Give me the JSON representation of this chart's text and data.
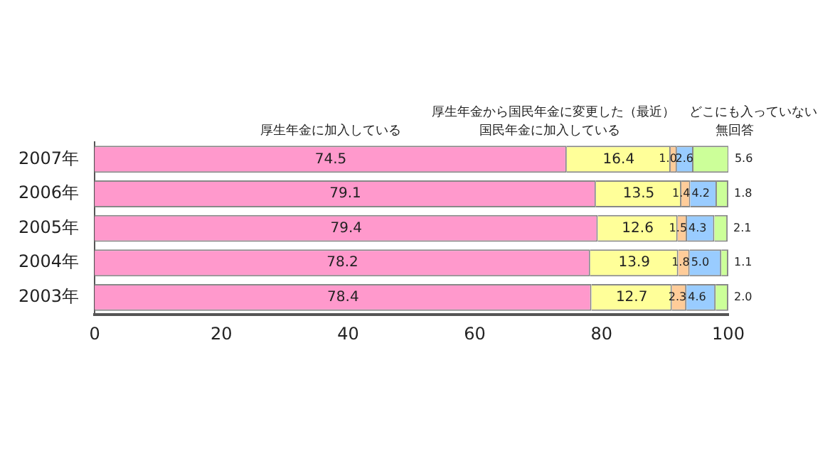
{
  "chart_data": {
    "type": "bar",
    "orientation": "horizontal",
    "stacked": true,
    "categories": [
      "2007年",
      "2006年",
      "2005年",
      "2004年",
      "2003年"
    ],
    "series": [
      {
        "name": "厚生年金に加入している",
        "color": "#ff99cc",
        "values": [
          74.5,
          79.1,
          79.4,
          78.2,
          78.4
        ],
        "value_labels": [
          "74.5",
          "79.1",
          "79.4",
          "78.2",
          "78.4"
        ]
      },
      {
        "name": "国民年金に加入している",
        "color": "#ffff99",
        "values": [
          16.4,
          13.5,
          12.6,
          13.9,
          12.7
        ],
        "value_labels": [
          "16.4",
          "13.5",
          "12.6",
          "13.9",
          "12.7"
        ]
      },
      {
        "name": "厚生年金から国民年金に変更した（最近）",
        "color": "#ffcc99",
        "values": [
          1.0,
          1.4,
          1.5,
          1.8,
          2.3
        ],
        "value_labels": [
          "1.0",
          "1.4",
          "1.5",
          "1.8",
          "2.3"
        ]
      },
      {
        "name": "どこにも入っていない",
        "color": "#99ccff",
        "values": [
          2.6,
          4.2,
          4.3,
          5.0,
          4.6
        ],
        "value_labels": [
          "2.6",
          "4.2",
          "4.3",
          "5.0",
          "4.6"
        ]
      },
      {
        "name": "無回答",
        "color": "#ccff99",
        "values": [
          5.6,
          1.8,
          2.1,
          1.1,
          2.0
        ],
        "value_labels": [
          "5.6",
          "1.8",
          "2.1",
          "1.1",
          "2.0"
        ]
      }
    ],
    "xlim": [
      0,
      100
    ],
    "xticks": [
      0,
      20,
      40,
      60,
      80,
      100
    ],
    "data_labels": true,
    "legend": false,
    "grid": false
  }
}
